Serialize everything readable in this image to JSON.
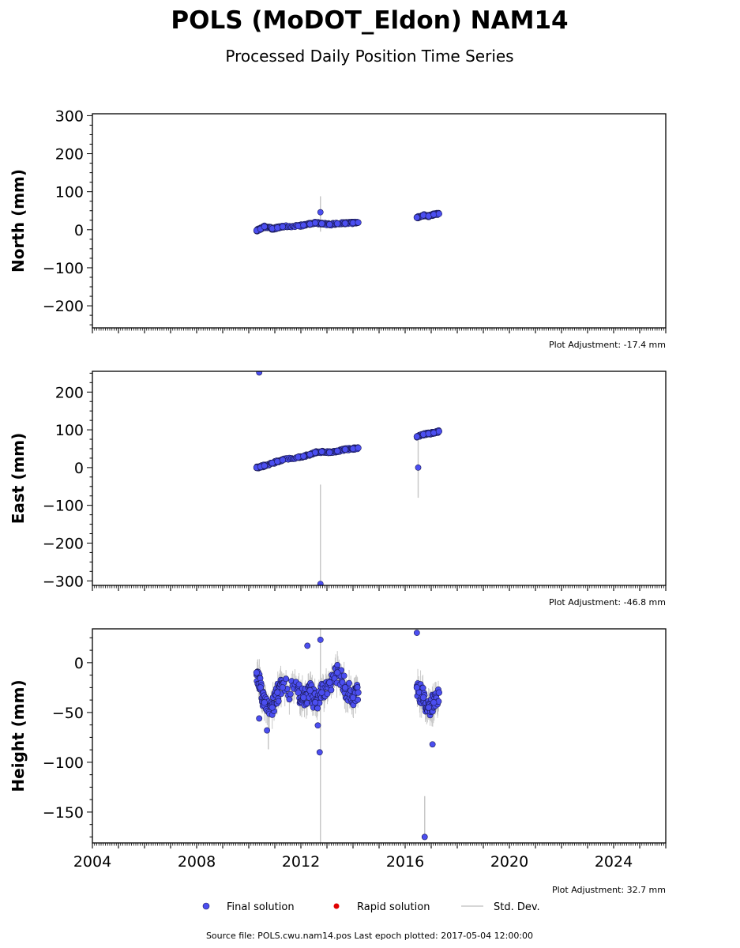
{
  "title": "POLS (MoDOT_Eldon) NAM14",
  "subtitle": "Processed Daily Position Time Series",
  "legend": {
    "final": "Final solution",
    "rapid": "Rapid solution",
    "stddev": "Std. Dev."
  },
  "footer": "Source file: POLS.cwu.nam14.pos  Last epoch plotted: 2017-05-04 12:00:00",
  "colors": {
    "final": "#4b4ef0",
    "final_edge": "#1a1a55",
    "rapid": "#e00000",
    "stddev": "#c8c8c8"
  },
  "chart_data": [
    {
      "type": "scatter",
      "ylabel": "North (mm)",
      "adjustment": "Plot Adjustment: -17.4 mm",
      "xlim": [
        2004.0,
        2026.0
      ],
      "ylim": [
        -258,
        305
      ],
      "yticks": [
        -200,
        -100,
        0,
        100,
        200,
        300
      ],
      "yticklabels": [
        "−200",
        "−100",
        "0",
        "100",
        "200",
        "300"
      ],
      "series": [
        {
          "x": [
            2010.3,
            2010.45,
            2010.6,
            2010.9,
            2011.1,
            2011.3,
            2011.9,
            2012.1,
            2012.35,
            2012.55,
            2012.8,
            2013.1,
            2013.4,
            2013.7,
            2014.0,
            2014.2,
            2016.45,
            2016.7,
            2016.9,
            2017.1,
            2017.3
          ],
          "y": [
            -2,
            2,
            8,
            3,
            5,
            8,
            10,
            12,
            15,
            18,
            16,
            14,
            16,
            17,
            18,
            19,
            32,
            38,
            36,
            40,
            42
          ]
        }
      ],
      "outliers": [
        {
          "x": 2012.75,
          "y": 46
        }
      ],
      "errorbars": [
        {
          "x": 2012.75,
          "y1": -5,
          "y2": 88
        }
      ]
    },
    {
      "type": "scatter",
      "ylabel": "East (mm)",
      "adjustment": "Plot Adjustment: -46.8 mm",
      "xlim": [
        2004.0,
        2026.0
      ],
      "ylim": [
        -312,
        255
      ],
      "yticks": [
        -300,
        -200,
        -100,
        0,
        100,
        200
      ],
      "yticklabels": [
        "−300",
        "−200",
        "−100",
        "0",
        "100",
        "200"
      ],
      "series": [
        {
          "x": [
            2010.3,
            2010.45,
            2010.6,
            2010.9,
            2011.1,
            2011.3,
            2011.9,
            2012.1,
            2012.35,
            2012.55,
            2012.8,
            2013.1,
            2013.4,
            2013.7,
            2014.0,
            2014.2,
            2016.45,
            2016.7,
            2016.9,
            2017.1,
            2017.3
          ],
          "y": [
            0,
            2,
            5,
            12,
            16,
            20,
            28,
            30,
            35,
            40,
            42,
            40,
            44,
            48,
            50,
            52,
            82,
            88,
            90,
            92,
            96
          ]
        }
      ],
      "outliers": [
        {
          "x": 2010.4,
          "y": 252
        },
        {
          "x": 2012.75,
          "y": -308
        },
        {
          "x": 2016.5,
          "y": 0
        }
      ],
      "errorbars": [
        {
          "x": 2012.75,
          "y1": -308,
          "y2": -45
        },
        {
          "x": 2016.5,
          "y1": -80,
          "y2": 90
        }
      ]
    },
    {
      "type": "scatter",
      "ylabel": "Height (mm)",
      "adjustment": "Plot Adjustment: 32.7 mm",
      "xlim": [
        2004.0,
        2026.0
      ],
      "ylim": [
        -181,
        34
      ],
      "yticks": [
        -150,
        -100,
        -50,
        0
      ],
      "yticklabels": [
        "−150",
        "−100",
        "−50",
        "0"
      ],
      "xticks": [
        2004,
        2008,
        2012,
        2016,
        2020,
        2024
      ],
      "xticklabels": [
        "2004",
        "2008",
        "2012",
        "2016",
        "2020",
        "2024"
      ],
      "series": [
        {
          "x": [
            2010.3,
            2010.45,
            2010.6,
            2010.9,
            2011.1,
            2011.3,
            2011.9,
            2012.1,
            2012.35,
            2012.55,
            2012.8,
            2013.1,
            2013.4,
            2013.7,
            2014.0,
            2014.2,
            2016.45,
            2016.7,
            2016.9,
            2017.1,
            2017.3
          ],
          "y": [
            -10,
            -25,
            -40,
            -45,
            -30,
            -25,
            -30,
            -35,
            -28,
            -40,
            -30,
            -20,
            -10,
            -25,
            -35,
            -30,
            -25,
            -35,
            -45,
            -40,
            -30
          ]
        }
      ],
      "outliers": [
        {
          "x": 2010.4,
          "y": -56
        },
        {
          "x": 2010.7,
          "y": -68
        },
        {
          "x": 2012.25,
          "y": 17
        },
        {
          "x": 2012.65,
          "y": -63
        },
        {
          "x": 2012.72,
          "y": -90
        },
        {
          "x": 2012.75,
          "y": 23
        },
        {
          "x": 2016.45,
          "y": 30
        },
        {
          "x": 2016.75,
          "y": -175
        },
        {
          "x": 2017.05,
          "y": -82
        }
      ],
      "errorbars": [
        {
          "x": 2012.75,
          "y1": -181,
          "y2": 34
        },
        {
          "x": 2016.75,
          "y1": -175,
          "y2": -134
        },
        {
          "x": 2010.75,
          "y1": -87,
          "y2": -50
        }
      ]
    }
  ]
}
